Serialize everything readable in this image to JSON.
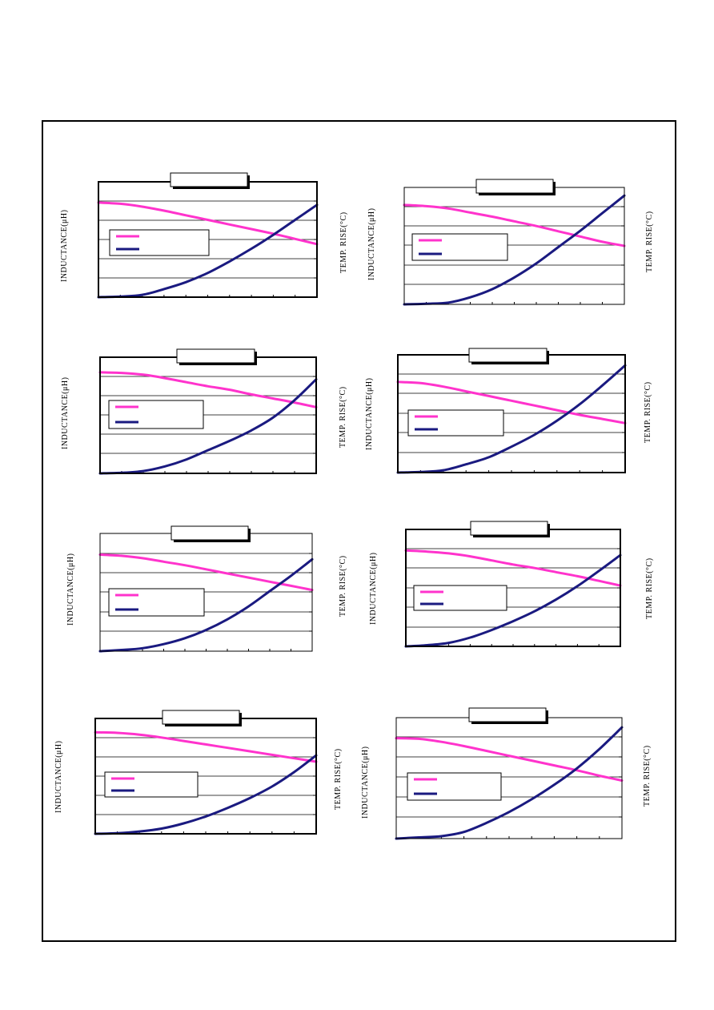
{
  "colors": {
    "inductance": "#ff33cc",
    "temp_rise": "#1a1a80",
    "border": "#000000",
    "grid": "#000000"
  },
  "chart_data": [
    {
      "type": "line",
      "ylabel_left": "INDUCTANCE(μH)",
      "ylabel_right": "TEMP. RISE(°C)",
      "grid": true,
      "x": [
        0,
        1,
        2,
        3,
        4,
        5,
        6,
        7,
        8,
        9,
        10
      ],
      "series": [
        {
          "values": [
            82,
            81,
            78.5,
            75,
            71,
            67,
            63,
            59,
            55,
            50.5,
            46
          ]
        },
        {
          "values": [
            0,
            0.5,
            2,
            7,
            13,
            21,
            31,
            42,
            54,
            67,
            80
          ]
        }
      ]
    },
    {
      "type": "line",
      "ylabel_left": "INDUCTANCE(μH)",
      "ylabel_right": "TEMP. RISE(°C)",
      "grid": true,
      "x": [
        0,
        1,
        2,
        3,
        4,
        5,
        6,
        7,
        8,
        9,
        10
      ],
      "series": [
        {
          "values": [
            85,
            84,
            82,
            78.5,
            75,
            71,
            67,
            62.5,
            58,
            53.5,
            50
          ]
        },
        {
          "values": [
            0,
            0.5,
            1.5,
            6,
            13,
            23,
            35,
            49,
            63,
            78,
            93
          ]
        }
      ]
    },
    {
      "type": "line",
      "ylabel_left": "INDUCTANCE(μH)",
      "ylabel_right": "TEMP. RISE(°C)",
      "grid": true,
      "x": [
        0,
        1,
        2,
        3,
        4,
        5,
        6,
        7,
        8,
        9,
        10
      ],
      "series": [
        {
          "values": [
            87,
            86.5,
            85,
            82,
            78.5,
            75,
            72,
            68,
            64.5,
            61,
            57
          ]
        },
        {
          "values": [
            0,
            0.5,
            2,
            6,
            12,
            20,
            28,
            37,
            48,
            63,
            81
          ]
        }
      ]
    },
    {
      "type": "line",
      "ylabel_left": "INDUCTANCE(μH)",
      "ylabel_right": "TEMP. RISE(°C)",
      "grid": true,
      "x": [
        0,
        1,
        2,
        3,
        4,
        5,
        6,
        7,
        8,
        9,
        10
      ],
      "series": [
        {
          "values": [
            77,
            76,
            73,
            69,
            65,
            61,
            57,
            53,
            49,
            45.5,
            42
          ]
        },
        {
          "values": [
            0,
            0.5,
            2,
            7,
            13,
            22,
            32,
            44,
            58,
            74,
            91
          ]
        }
      ]
    },
    {
      "type": "line",
      "ylabel_left": "INDUCTANCE(μH)",
      "ylabel_right": "TEMP. RISE(°C)",
      "grid": true,
      "x": [
        0,
        1,
        2,
        3,
        4,
        5,
        6,
        7,
        8,
        9,
        10
      ],
      "series": [
        {
          "values": [
            82,
            81,
            79,
            76,
            73,
            69.5,
            66,
            62.5,
            59,
            55.5,
            52
          ]
        },
        {
          "values": [
            0,
            1,
            2.5,
            6,
            11,
            18,
            27,
            38,
            51,
            64,
            78
          ]
        }
      ]
    },
    {
      "type": "line",
      "ylabel_left": "INDUCTANCE(μH)",
      "ylabel_right": "TEMP. RISE(°C)",
      "grid": true,
      "x": [
        0,
        1,
        2,
        3,
        4,
        5,
        6,
        7,
        8,
        9,
        10
      ],
      "series": [
        {
          "values": [
            82,
            81,
            79.5,
            77,
            73.5,
            70,
            67,
            63.5,
            60,
            56,
            52
          ]
        },
        {
          "values": [
            0,
            1,
            3,
            7.5,
            14,
            21.5,
            30,
            40,
            51.5,
            64.5,
            78
          ]
        }
      ]
    },
    {
      "type": "line",
      "ylabel_left": "INDUCTANCE(μH)",
      "ylabel_right": "TEMP. RISE(°C)",
      "grid": true,
      "x": [
        0,
        1,
        2,
        3,
        4,
        5,
        6,
        7,
        8,
        9,
        10
      ],
      "series": [
        {
          "values": [
            88,
            87.5,
            86,
            83.5,
            80.5,
            77.5,
            74.5,
            71.5,
            68.5,
            65.5,
            62.5
          ]
        },
        {
          "values": [
            0,
            0.5,
            2,
            4.5,
            9,
            15,
            22.5,
            31,
            41,
            53.5,
            68
          ]
        }
      ]
    },
    {
      "type": "line",
      "ylabel_left": "INDUCTANCE(μH)",
      "ylabel_right": "TEMP. RISE(°C)",
      "grid": true,
      "x": [
        0,
        1,
        2,
        3,
        4,
        5,
        6,
        7,
        8,
        9,
        10
      ],
      "series": [
        {
          "values": [
            83,
            82.5,
            80,
            76.5,
            72.5,
            68.5,
            64.5,
            60.5,
            56.5,
            52,
            48
          ]
        },
        {
          "values": [
            0,
            1,
            2,
            5.5,
            13,
            22,
            32.5,
            44.5,
            58,
            74,
            92
          ]
        }
      ]
    }
  ]
}
